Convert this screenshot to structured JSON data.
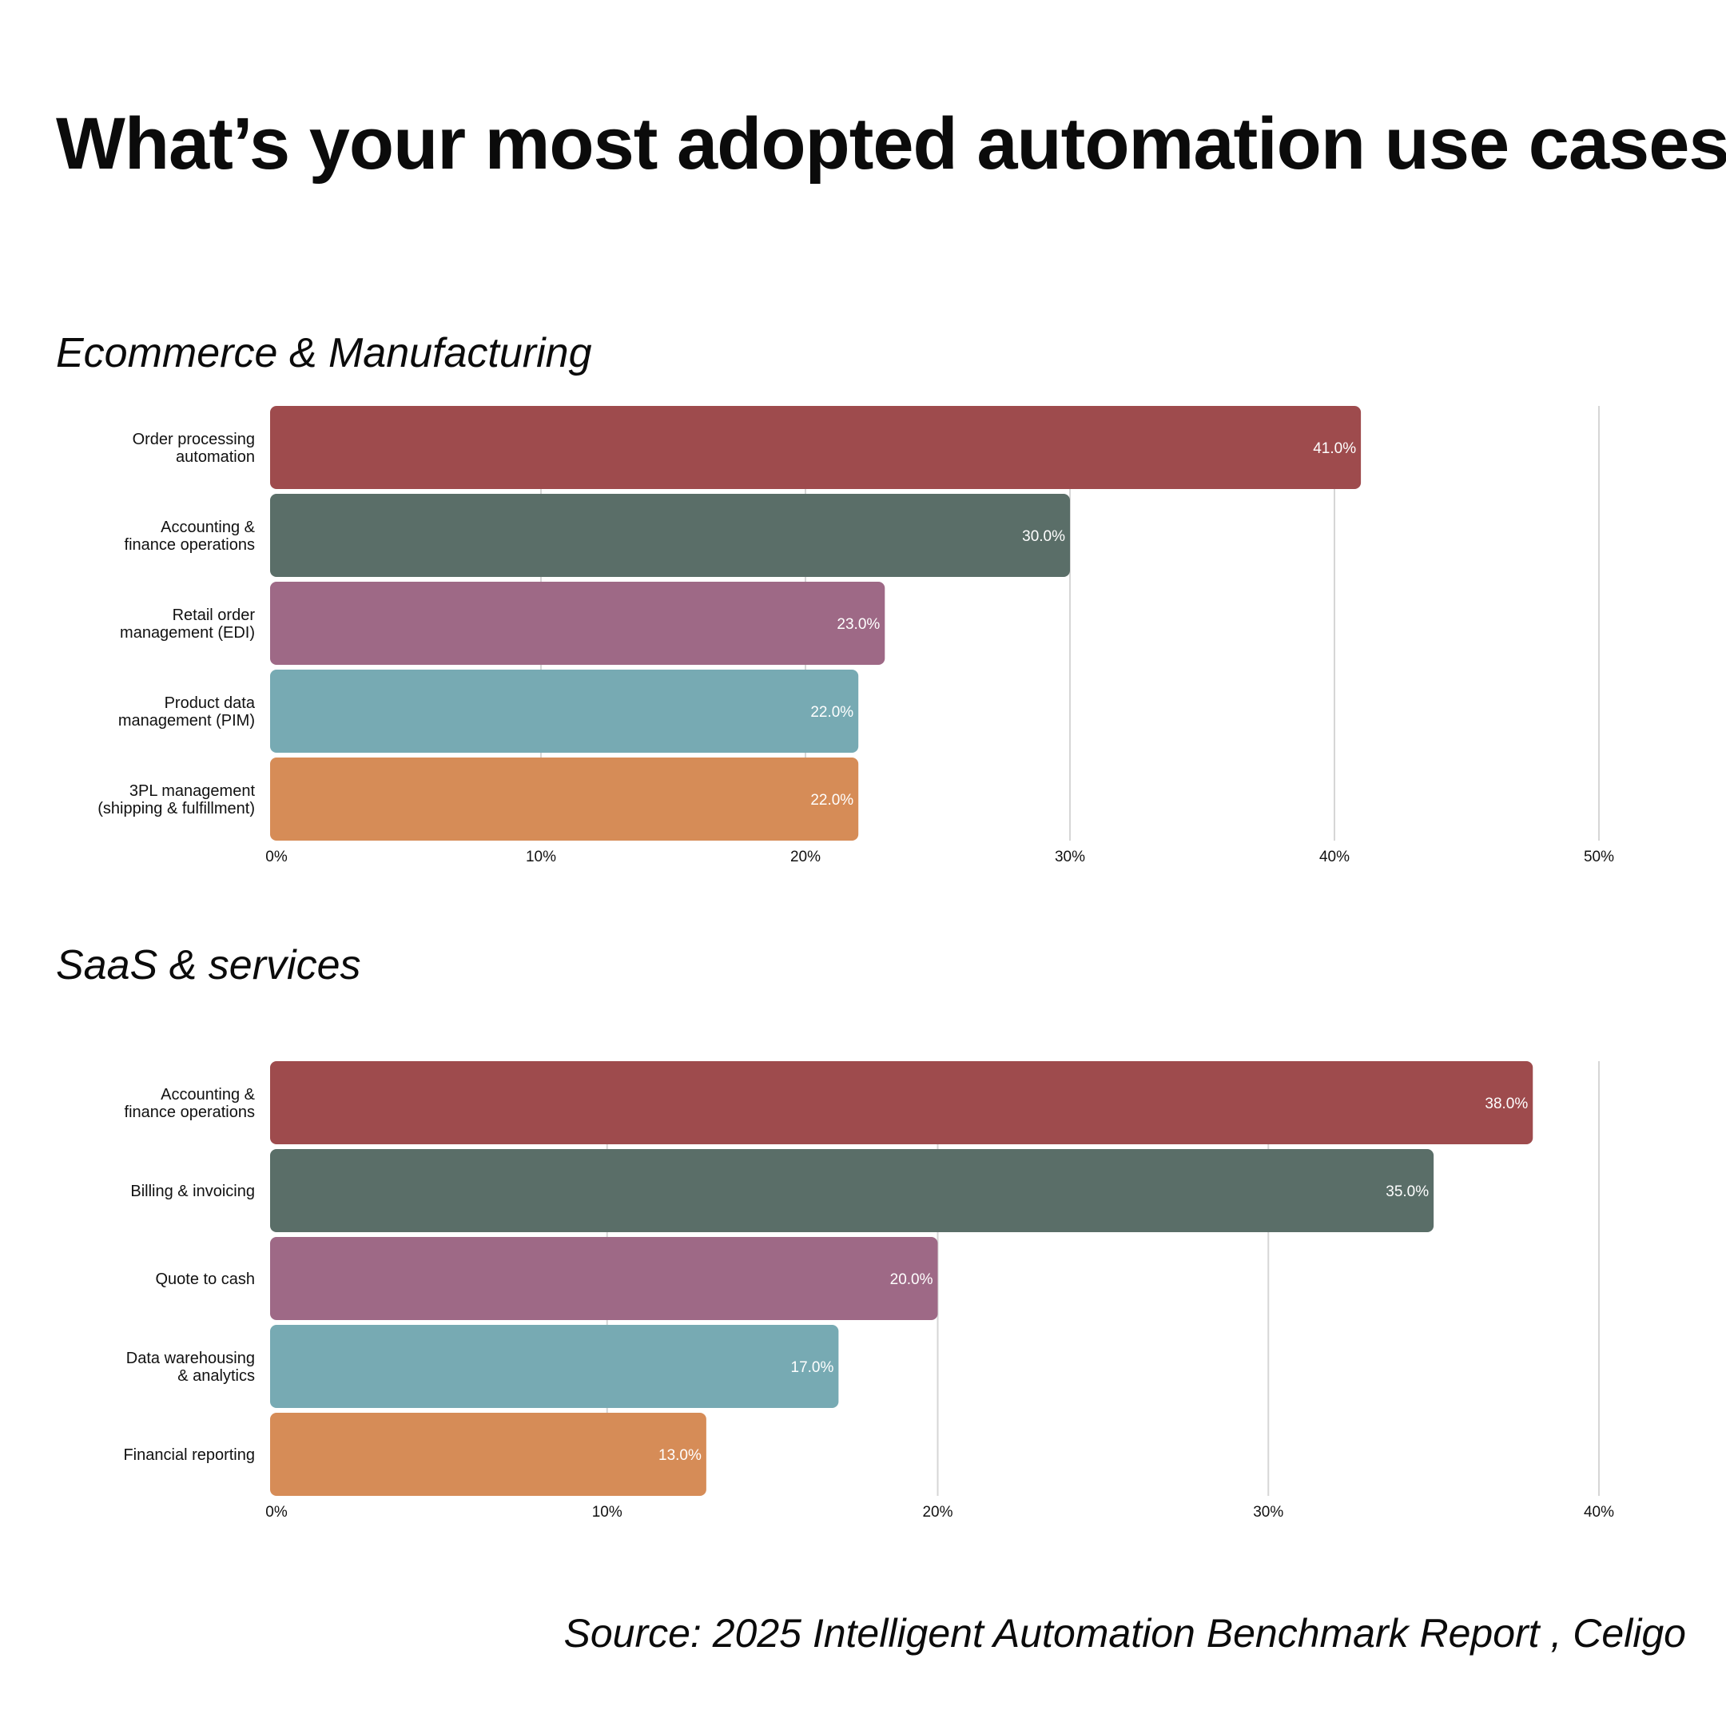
{
  "title": "What’s your most adopted automation use cases?",
  "source": "Source: 2025 Intelligent Automation Benchmark Report , Celigo",
  "colors": [
    "#9e4b4d",
    "#5a6e68",
    "#9e6986",
    "#77aab3",
    "#d68c57"
  ],
  "chart_data": [
    {
      "type": "bar",
      "orientation": "horizontal",
      "title": "Ecommerce & Manufacturing",
      "categories": [
        [
          "Order processing",
          "automation"
        ],
        [
          "Accounting &",
          "finance operations"
        ],
        [
          "Retail order",
          "management (EDI)"
        ],
        [
          "Product data",
          "management (PIM)"
        ],
        [
          "3PL management",
          "(shipping & fulfillment)"
        ]
      ],
      "values": [
        41.0,
        30.0,
        23.0,
        22.0,
        22.0
      ],
      "data_labels": [
        "41.0%",
        "30.0%",
        "23.0%",
        "22.0%",
        "22.0%"
      ],
      "xlim": [
        0,
        50
      ],
      "ticks": [
        0,
        10,
        20,
        30,
        40,
        50
      ],
      "tick_labels": [
        "0%",
        "10%",
        "20%",
        "30%",
        "40%",
        "50%"
      ],
      "grid": true
    },
    {
      "type": "bar",
      "orientation": "horizontal",
      "title": "SaaS & services",
      "categories": [
        [
          "Accounting &",
          "finance operations"
        ],
        [
          "Billing & invoicing"
        ],
        [
          "Quote to cash"
        ],
        [
          "Data warehousing",
          "& analytics"
        ],
        [
          "Financial reporting"
        ]
      ],
      "values": [
        38.0,
        35.0,
        20.0,
        17.0,
        13.0
      ],
      "data_labels": [
        "38.0%",
        "35.0%",
        "20.0%",
        "17.0%",
        "13.0%"
      ],
      "xlim": [
        0,
        40
      ],
      "ticks": [
        0,
        10,
        20,
        30,
        40
      ],
      "tick_labels": [
        "0%",
        "10%",
        "20%",
        "30%",
        "40%"
      ],
      "grid": true
    }
  ]
}
